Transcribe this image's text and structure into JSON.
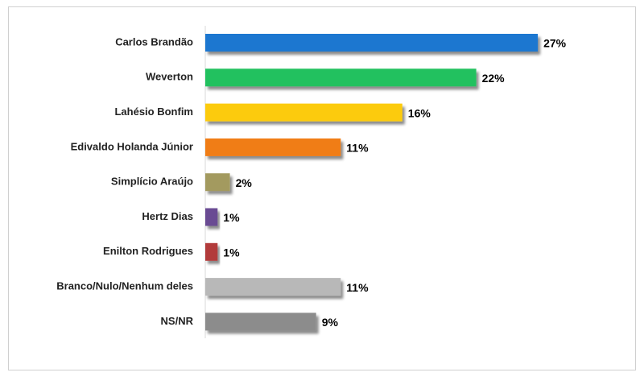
{
  "chart_data": {
    "type": "barh",
    "categories": [
      "Carlos Brandão",
      "Weverton",
      "Lahésio Bonfim",
      "Edivaldo Holanda Júnior",
      "Simplício Araújo",
      "Hertz Dias",
      "Enilton Rodrigues",
      "Branco/Nulo/Nenhum deles",
      "NS/NR"
    ],
    "values": [
      27,
      22,
      16,
      11,
      2,
      1,
      1,
      11,
      9
    ],
    "value_labels": [
      "27%",
      "22%",
      "16%",
      "11%",
      "2%",
      "1%",
      "1%",
      "11%",
      "9%"
    ],
    "colors": [
      "#1f77d0",
      "#22c15e",
      "#fccb10",
      "#f07d19",
      "#a39a5e",
      "#6a4c93",
      "#b23a3a",
      "#b8b8b8",
      "#8c8c8c"
    ]
  }
}
